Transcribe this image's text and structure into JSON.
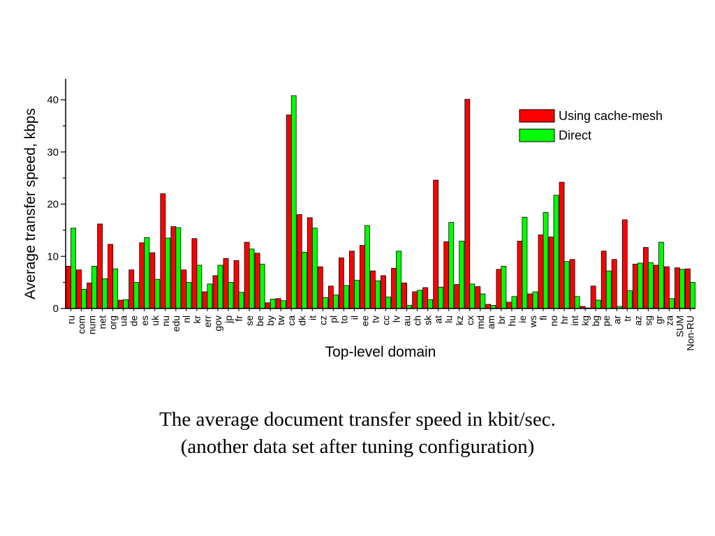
{
  "chart_data": {
    "type": "bar",
    "xlabel": "Top-level domain",
    "ylabel": "Average transfer speed, kbps",
    "ylim": [
      0,
      44
    ],
    "yticks": [
      0,
      10,
      20,
      30,
      40
    ],
    "legend_position": "top-right",
    "grid": false,
    "categories": [
      "ru",
      "com",
      "num",
      "net",
      "org",
      "ua",
      "de",
      "es",
      "uk",
      "nu",
      "edu",
      "nl",
      "kr",
      "err",
      "gov",
      "jp",
      "fr",
      "se",
      "be",
      "by",
      "tw",
      "ca",
      "dk",
      "it",
      "cz",
      "pl",
      "to",
      "il",
      "ee",
      "tv",
      "cc",
      "lv",
      "au",
      "ch",
      "sk",
      "at",
      "lu",
      "kz",
      "cx",
      "md",
      "am",
      "br",
      "hu",
      "ie",
      "ws",
      "fi",
      "no",
      "hr",
      "int",
      "kg",
      "bg",
      "pe",
      "ar",
      "tr",
      "az",
      "sg",
      "gr",
      "za",
      "SUM",
      "Non-RU"
    ],
    "series": [
      {
        "name": "Using cache-mesh",
        "color": "#ff0000",
        "values": [
          8.1,
          7.4,
          4.9,
          16.2,
          12.3,
          1.6,
          7.4,
          12.6,
          10.7,
          22.0,
          15.7,
          7.4,
          13.4,
          3.2,
          6.3,
          9.6,
          9.2,
          12.7,
          10.6,
          1.1,
          1.9,
          37.1,
          18.0,
          17.4,
          8.0,
          4.3,
          9.7,
          11.0,
          12.1,
          7.2,
          6.3,
          7.7,
          4.9,
          3.2,
          4.0,
          24.6,
          12.8,
          4.6,
          40.1,
          4.2,
          0.8,
          7.5,
          1.2,
          12.9,
          2.8,
          14.1,
          13.7,
          24.2,
          9.4,
          0.4,
          4.3,
          11.0,
          9.4,
          17.0,
          8.5,
          11.7,
          8.3,
          8.0,
          7.8,
          7.6
        ]
      },
      {
        "name": "Direct",
        "color": "#00ff00",
        "values": [
          15.4,
          3.7,
          8.1,
          5.7,
          7.6,
          1.7,
          5.0,
          13.6,
          5.6,
          13.5,
          15.5,
          5.0,
          8.3,
          4.7,
          8.3,
          5.0,
          3.1,
          11.4,
          8.5,
          1.8,
          1.5,
          40.8,
          10.8,
          15.4,
          2.1,
          2.6,
          4.4,
          5.4,
          15.9,
          5.3,
          2.2,
          11.0,
          0.6,
          3.5,
          1.7,
          4.1,
          16.5,
          12.9,
          4.7,
          2.8,
          0.6,
          8.1,
          2.3,
          17.5,
          3.2,
          18.4,
          21.7,
          9.0,
          2.3,
          0.1,
          1.6,
          7.2,
          0.4,
          3.4,
          8.7,
          8.8,
          12.7,
          1.9,
          7.5,
          5.0
        ]
      }
    ]
  },
  "caption": {
    "line1": "The average document transfer speed in kbit/sec.",
    "line2": "(another data set after tuning configuration)"
  }
}
